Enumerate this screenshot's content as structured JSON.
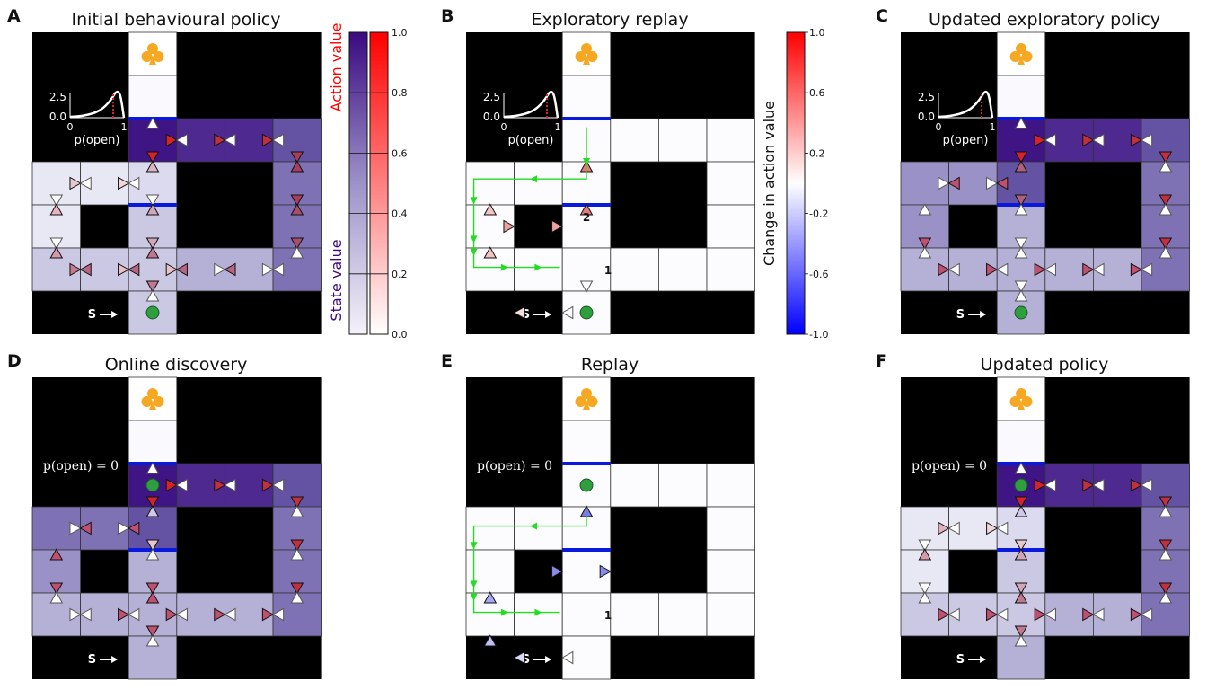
{
  "panels": [
    {
      "letter": "A",
      "title": "Initial behavioural policy"
    },
    {
      "letter": "B",
      "title": "Exploratory replay"
    },
    {
      "letter": "C",
      "title": "Updated exploratory policy"
    },
    {
      "letter": "D",
      "title": "Online discovery"
    },
    {
      "letter": "E",
      "title": "Replay"
    },
    {
      "letter": "F",
      "title": "Updated policy"
    }
  ],
  "start_label": "S",
  "inset": {
    "y_tick_top": "2.5",
    "y_tick_bottom": "0.0",
    "x_tick_left": "0",
    "x_tick_right": "1",
    "xlabel": "p(open)"
  },
  "p_open_zero_label": "p(open) = 0",
  "step_labels": {
    "first": "1",
    "second": "2"
  },
  "colorbar_value": {
    "action_label": "Action value",
    "state_label": "State value",
    "ticks": [
      "1.0",
      "0.8",
      "0.6",
      "0.4",
      "0.2",
      "0.0"
    ],
    "action_color": "#ff0000",
    "state_color": "#3a0a80"
  },
  "colorbar_change": {
    "label": "Change in action value",
    "ticks": [
      "1.0",
      "0.6",
      "0.2",
      "-0.2",
      "-0.6",
      "-1.0"
    ],
    "pos_color": "#ff0000",
    "neg_color": "#0000ff"
  },
  "colors": {
    "barrier": "#0a1adc",
    "path": "#22dd22",
    "reward": "#f7a823",
    "agent": "#2e9e3e",
    "wall": "#000000"
  },
  "icons": {
    "reward": "club-icon",
    "agent": "agent-dot-icon",
    "start": "arrow-right-icon"
  }
}
